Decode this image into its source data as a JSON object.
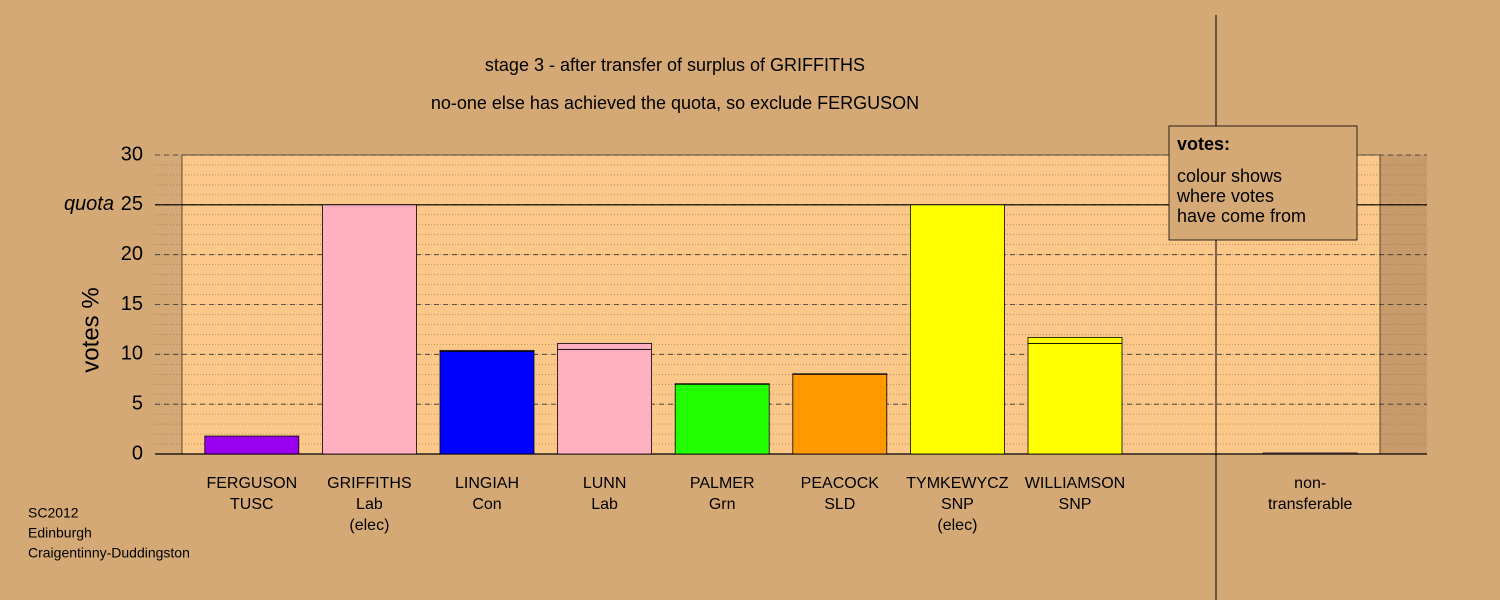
{
  "chart_data": {
    "type": "bar",
    "title": "stage 3 - after transfer of surplus of GRIFFITHS",
    "subtitle": "no-one else has achieved the quota, so exclude FERGUSON",
    "ylabel": "votes %",
    "categories": [
      [
        "FERGUSON",
        "TUSC"
      ],
      [
        "GRIFFITHS",
        "Lab",
        "(elec)"
      ],
      [
        "LINGIAH",
        "Con"
      ],
      [
        "LUNN",
        "Lab"
      ],
      [
        "PALMER",
        "Grn"
      ],
      [
        "PEACOCK",
        "SLD"
      ],
      [
        "TYMKEWYCZ",
        "SNP",
        "(elec)"
      ],
      [
        "WILLIAMSON",
        "SNP"
      ],
      null,
      [
        "non-",
        "transferable"
      ]
    ],
    "series": [
      {
        "colors": [
          "#9900ee",
          "#ffb0c0",
          "#0000ff",
          "#ffb0c0",
          "#22ff00",
          "#ff9900",
          "#ffff00",
          "#ffff00",
          null,
          "#999999"
        ],
        "values": [
          1.8,
          25,
          10.3,
          10.5,
          7.0,
          8.0,
          25,
          11.1,
          null,
          0
        ]
      },
      {
        "colors": [
          "#ffb0c0",
          "#ffb0c0",
          "#ffb0c0",
          "#ffb0c0",
          "#ffb0c0",
          "#ffb0c0",
          "#ffb0c0",
          "#ffff00",
          null,
          "#ffb0c0"
        ],
        "values": [
          0,
          0,
          0.1,
          0.6,
          0.05,
          0.05,
          0,
          0.6,
          null,
          0.1
        ]
      }
    ],
    "ylim": [
      0,
      30
    ],
    "yticks": [
      0,
      5,
      10,
      15,
      20,
      25,
      30
    ],
    "minor_grid_step": 1,
    "quota": 25,
    "quota_label": "quota",
    "legend": {
      "title": "votes:",
      "lines": [
        "colour shows",
        "where votes",
        "have come from"
      ]
    },
    "note": [
      "SC2012",
      "Edinburgh",
      "Craigentinny-Duddingston"
    ]
  }
}
